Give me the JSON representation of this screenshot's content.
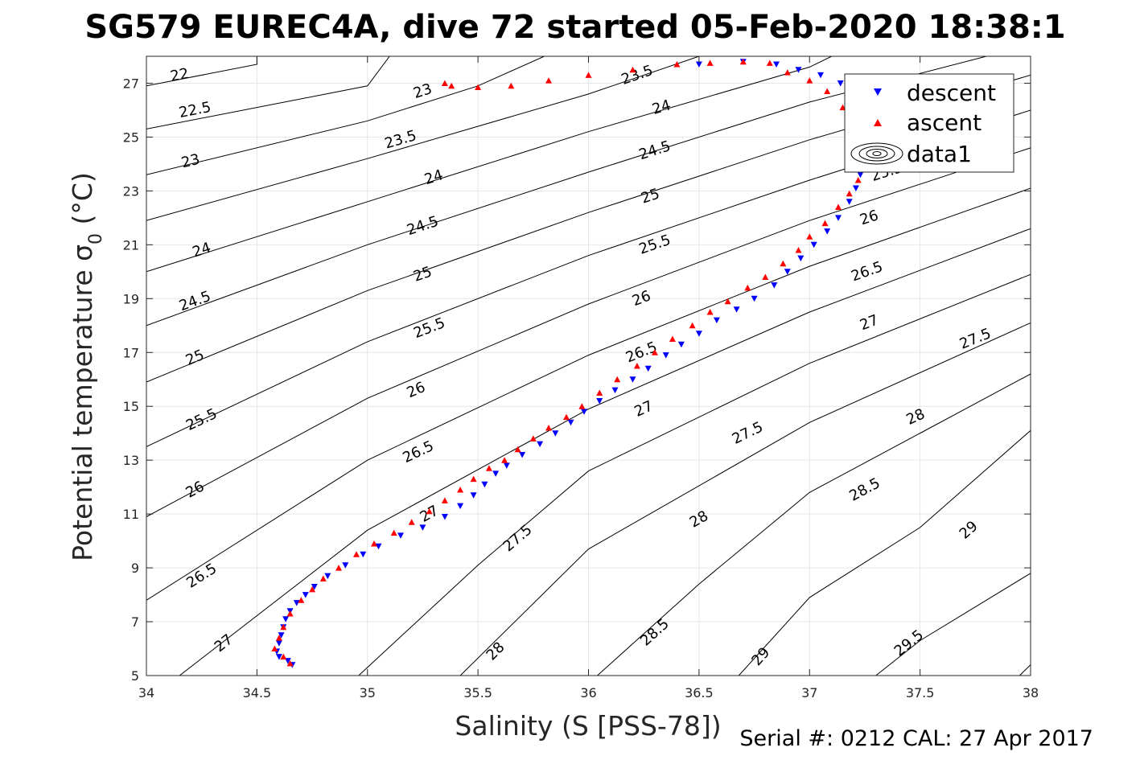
{
  "chart_data": {
    "type": "scatter",
    "title": "SG579 EUREC4A, dive 72 started 05-Feb-2020 18:38:1",
    "xlabel": "Salinity (S [PSS-78])",
    "ylabel": "Potential temperature σ",
    "ylabel_subscript": "0",
    "ylabel_unit": " (°C)",
    "xlim": [
      34,
      38
    ],
    "ylim": [
      5,
      28
    ],
    "xticks": [
      34,
      34.5,
      35,
      35.5,
      36,
      36.5,
      37,
      37.5,
      38
    ],
    "xtick_labels": [
      "34",
      "34.5",
      "35",
      "35.5",
      "36",
      "36.5",
      "37",
      "37.5",
      "38"
    ],
    "yticks": [
      5,
      7,
      9,
      11,
      13,
      15,
      17,
      19,
      21,
      23,
      25,
      27
    ],
    "ytick_labels": [
      "5",
      "7",
      "9",
      "11",
      "13",
      "15",
      "17",
      "19",
      "21",
      "23",
      "25",
      "27"
    ],
    "grid": true,
    "legend_position": "top-right",
    "density_contours": [
      {
        "sigma": 22,
        "label": "22",
        "points": [
          [
            34,
            26.9
          ],
          [
            34.5,
            27.7
          ],
          [
            34.5,
            28
          ]
        ]
      },
      {
        "sigma": 22.5,
        "label": "22.5",
        "points": [
          [
            34,
            25.3
          ],
          [
            35,
            26.9
          ],
          [
            35.1,
            28
          ]
        ]
      },
      {
        "sigma": 23,
        "label": "23",
        "points": [
          [
            34,
            23.6
          ],
          [
            35,
            25.6
          ],
          [
            35.5,
            26.9
          ],
          [
            35.8,
            28
          ]
        ]
      },
      {
        "sigma": 23.5,
        "label": "23.5",
        "points": [
          [
            34,
            21.9
          ],
          [
            35,
            24.2
          ],
          [
            36,
            26.6
          ],
          [
            36.5,
            28
          ]
        ]
      },
      {
        "sigma": 24,
        "label": "24",
        "points": [
          [
            34,
            20
          ],
          [
            35,
            22.6
          ],
          [
            36,
            25.2
          ],
          [
            37,
            27.6
          ],
          [
            37.1,
            28
          ]
        ]
      },
      {
        "sigma": 24.5,
        "label": "24.5",
        "points": [
          [
            34,
            18
          ],
          [
            35,
            21
          ],
          [
            36,
            23.7
          ],
          [
            37,
            26.3
          ],
          [
            37.8,
            28
          ]
        ]
      },
      {
        "sigma": 25,
        "label": "25",
        "points": [
          [
            34,
            15.9
          ],
          [
            35,
            19.3
          ],
          [
            36,
            22.2
          ],
          [
            37,
            24.9
          ],
          [
            38,
            27.3
          ]
        ]
      },
      {
        "sigma": 25.5,
        "label": "25.5",
        "points": [
          [
            34,
            13.5
          ],
          [
            35,
            17.4
          ],
          [
            36,
            20.6
          ],
          [
            37,
            23.4
          ],
          [
            38,
            26
          ]
        ]
      },
      {
        "sigma": 26,
        "label": "26",
        "points": [
          [
            34,
            10.9
          ],
          [
            35,
            15.3
          ],
          [
            36,
            18.8
          ],
          [
            37,
            21.9
          ],
          [
            38,
            24.6
          ]
        ]
      },
      {
        "sigma": 26.5,
        "label": "26.5",
        "points": [
          [
            34,
            7.8
          ],
          [
            35,
            13
          ],
          [
            36,
            16.9
          ],
          [
            37,
            20.2
          ],
          [
            38,
            23.1
          ]
        ]
      },
      {
        "sigma": 27,
        "label": "27",
        "points": [
          [
            34.15,
            5
          ],
          [
            35,
            10.4
          ],
          [
            36,
            14.9
          ],
          [
            37,
            18.5
          ],
          [
            38,
            21.6
          ]
        ]
      },
      {
        "sigma": 27.5,
        "label": "27.5",
        "points": [
          [
            34.96,
            5
          ],
          [
            35.5,
            9.1
          ],
          [
            36,
            12.6
          ],
          [
            37,
            16.6
          ],
          [
            38,
            19.9
          ]
        ]
      },
      {
        "sigma": 28,
        "label": "28",
        "points": [
          [
            35.42,
            5
          ],
          [
            36,
            9.7
          ],
          [
            37,
            14.4
          ],
          [
            38,
            18.1
          ]
        ]
      },
      {
        "sigma": 28.5,
        "label": "28.5",
        "points": [
          [
            36.04,
            5
          ],
          [
            36.5,
            8.4
          ],
          [
            37,
            11.8
          ],
          [
            38,
            16.2
          ]
        ]
      },
      {
        "sigma": 29,
        "label": "29",
        "points": [
          [
            36.68,
            5
          ],
          [
            37,
            7.9
          ],
          [
            37.5,
            10.5
          ],
          [
            38,
            14.1
          ]
        ]
      },
      {
        "sigma": 29.5,
        "label": "29.5",
        "points": [
          [
            37.3,
            5
          ],
          [
            37.5,
            6.3
          ],
          [
            38,
            8.8
          ]
        ]
      },
      {
        "sigma": 30,
        "label": "",
        "points": [
          [
            37.95,
            5
          ],
          [
            38,
            5.4
          ]
        ]
      }
    ],
    "contour_label_positions": [
      {
        "label": "22",
        "x": 34.15,
        "y": 27.3
      },
      {
        "label": "22.5",
        "x": 34.22,
        "y": 26.0
      },
      {
        "label": "23",
        "x": 34.2,
        "y": 24.1
      },
      {
        "label": "23",
        "x": 35.25,
        "y": 26.7
      },
      {
        "label": "23.5",
        "x": 35.15,
        "y": 24.9
      },
      {
        "label": "23.5",
        "x": 36.22,
        "y": 27.3
      },
      {
        "label": "24",
        "x": 34.25,
        "y": 20.8
      },
      {
        "label": "24",
        "x": 35.3,
        "y": 23.5
      },
      {
        "label": "24",
        "x": 36.33,
        "y": 26.1
      },
      {
        "label": "24.5",
        "x": 34.22,
        "y": 18.9
      },
      {
        "label": "24.5",
        "x": 35.25,
        "y": 21.7
      },
      {
        "label": "24.5",
        "x": 36.3,
        "y": 24.5
      },
      {
        "label": "25",
        "x": 34.22,
        "y": 16.8
      },
      {
        "label": "25",
        "x": 35.25,
        "y": 19.9
      },
      {
        "label": "25",
        "x": 36.28,
        "y": 22.8
      },
      {
        "label": "25.5",
        "x": 34.25,
        "y": 14.5
      },
      {
        "label": "25.5",
        "x": 35.28,
        "y": 17.9
      },
      {
        "label": "25.5",
        "x": 36.3,
        "y": 21.0
      },
      {
        "label": "26",
        "x": 34.22,
        "y": 11.9
      },
      {
        "label": "26",
        "x": 35.22,
        "y": 15.6
      },
      {
        "label": "26",
        "x": 36.24,
        "y": 19.0
      },
      {
        "label": "26",
        "x": 37.27,
        "y": 22.0
      },
      {
        "label": "26.5",
        "x": 34.25,
        "y": 8.7
      },
      {
        "label": "26.5",
        "x": 35.23,
        "y": 13.3
      },
      {
        "label": "26.5",
        "x": 36.24,
        "y": 17.0
      },
      {
        "label": "26.5",
        "x": 37.26,
        "y": 20.0
      },
      {
        "label": "27",
        "x": 34.35,
        "y": 6.2
      },
      {
        "label": "27",
        "x": 35.28,
        "y": 11.0
      },
      {
        "label": "27",
        "x": 36.25,
        "y": 14.9
      },
      {
        "label": "27",
        "x": 37.27,
        "y": 18.1
      },
      {
        "label": "27.5",
        "x": 35.68,
        "y": 10.1
      },
      {
        "label": "27.5",
        "x": 36.72,
        "y": 14.0
      },
      {
        "label": "27.5",
        "x": 37.75,
        "y": 17.5
      },
      {
        "label": "28",
        "x": 35.58,
        "y": 5.9
      },
      {
        "label": "28",
        "x": 36.5,
        "y": 10.8
      },
      {
        "label": "28",
        "x": 37.48,
        "y": 14.6
      },
      {
        "label": "28.5",
        "x": 36.3,
        "y": 6.6
      },
      {
        "label": "28.5",
        "x": 37.25,
        "y": 11.9
      },
      {
        "label": "29",
        "x": 36.78,
        "y": 5.7
      },
      {
        "label": "29",
        "x": 37.72,
        "y": 10.4
      },
      {
        "label": "29.5",
        "x": 37.45,
        "y": 6.2
      },
      {
        "label": "25.5",
        "x": 37.35,
        "y": 23.7
      }
    ],
    "series": [
      {
        "name": "descent",
        "marker": "down-triangle",
        "color": "#0000ff",
        "points": [
          [
            34.66,
            5.4
          ],
          [
            34.64,
            5.55
          ],
          [
            34.6,
            5.7
          ],
          [
            34.59,
            5.9
          ],
          [
            34.6,
            6.2
          ],
          [
            34.61,
            6.5
          ],
          [
            34.62,
            6.8
          ],
          [
            34.63,
            7.1
          ],
          [
            34.65,
            7.4
          ],
          [
            34.68,
            7.7
          ],
          [
            34.72,
            8.0
          ],
          [
            34.76,
            8.3
          ],
          [
            34.82,
            8.7
          ],
          [
            34.9,
            9.1
          ],
          [
            34.98,
            9.5
          ],
          [
            35.05,
            9.8
          ],
          [
            35.15,
            10.2
          ],
          [
            35.25,
            10.5
          ],
          [
            35.35,
            10.9
          ],
          [
            35.42,
            11.3
          ],
          [
            35.48,
            11.7
          ],
          [
            35.53,
            12.1
          ],
          [
            35.58,
            12.5
          ],
          [
            35.63,
            12.8
          ],
          [
            35.7,
            13.2
          ],
          [
            35.78,
            13.6
          ],
          [
            35.85,
            14.0
          ],
          [
            35.92,
            14.4
          ],
          [
            35.98,
            14.8
          ],
          [
            36.05,
            15.2
          ],
          [
            36.12,
            15.6
          ],
          [
            36.2,
            16.0
          ],
          [
            36.27,
            16.4
          ],
          [
            36.35,
            16.9
          ],
          [
            36.42,
            17.3
          ],
          [
            36.5,
            17.7
          ],
          [
            36.58,
            18.2
          ],
          [
            36.67,
            18.6
          ],
          [
            36.75,
            19.0
          ],
          [
            36.84,
            19.5
          ],
          [
            36.9,
            20.0
          ],
          [
            36.96,
            20.5
          ],
          [
            37.02,
            21.0
          ],
          [
            37.08,
            21.5
          ],
          [
            37.13,
            22.0
          ],
          [
            37.18,
            22.6
          ],
          [
            37.21,
            23.1
          ],
          [
            37.23,
            23.6
          ],
          [
            37.26,
            24.3
          ],
          [
            37.28,
            24.9
          ],
          [
            37.22,
            25.6
          ],
          [
            37.18,
            26.3
          ],
          [
            37.14,
            27.0
          ],
          [
            37.05,
            27.3
          ],
          [
            36.95,
            27.5
          ],
          [
            36.85,
            27.7
          ],
          [
            36.7,
            27.8
          ],
          [
            36.5,
            27.7
          ]
        ]
      },
      {
        "name": "ascent",
        "marker": "up-triangle",
        "color": "#ff0000",
        "points": [
          [
            34.65,
            5.45
          ],
          [
            34.62,
            5.7
          ],
          [
            34.58,
            6.0
          ],
          [
            34.6,
            6.4
          ],
          [
            34.62,
            6.8
          ],
          [
            34.65,
            7.3
          ],
          [
            34.7,
            7.8
          ],
          [
            34.75,
            8.2
          ],
          [
            34.8,
            8.6
          ],
          [
            34.87,
            9.0
          ],
          [
            34.95,
            9.5
          ],
          [
            35.03,
            9.9
          ],
          [
            35.12,
            10.3
          ],
          [
            35.2,
            10.7
          ],
          [
            35.28,
            11.1
          ],
          [
            35.35,
            11.5
          ],
          [
            35.42,
            11.9
          ],
          [
            35.48,
            12.3
          ],
          [
            35.55,
            12.7
          ],
          [
            35.62,
            13.0
          ],
          [
            35.68,
            13.4
          ],
          [
            35.75,
            13.8
          ],
          [
            35.82,
            14.2
          ],
          [
            35.9,
            14.6
          ],
          [
            35.97,
            15.0
          ],
          [
            36.05,
            15.5
          ],
          [
            36.13,
            16.0
          ],
          [
            36.22,
            16.5
          ],
          [
            36.3,
            17.0
          ],
          [
            36.38,
            17.5
          ],
          [
            36.47,
            18.0
          ],
          [
            36.55,
            18.5
          ],
          [
            36.63,
            18.9
          ],
          [
            36.72,
            19.4
          ],
          [
            36.8,
            19.8
          ],
          [
            36.88,
            20.3
          ],
          [
            36.95,
            20.8
          ],
          [
            37.0,
            21.3
          ],
          [
            37.07,
            21.8
          ],
          [
            37.13,
            22.4
          ],
          [
            37.18,
            22.9
          ],
          [
            37.22,
            23.4
          ],
          [
            37.24,
            24.0
          ],
          [
            37.25,
            24.7
          ],
          [
            37.22,
            25.4
          ],
          [
            37.15,
            26.1
          ],
          [
            37.08,
            26.7
          ],
          [
            37.0,
            27.1
          ],
          [
            36.9,
            27.4
          ],
          [
            36.82,
            27.75
          ],
          [
            36.7,
            27.8
          ],
          [
            36.55,
            27.75
          ],
          [
            36.4,
            27.7
          ],
          [
            36.2,
            27.5
          ],
          [
            36.0,
            27.3
          ],
          [
            35.82,
            27.1
          ],
          [
            35.65,
            26.9
          ],
          [
            35.5,
            26.85
          ],
          [
            35.38,
            26.9
          ],
          [
            35.35,
            27.0
          ]
        ]
      }
    ],
    "legend": {
      "entries": [
        "descent",
        "ascent",
        "data1"
      ]
    }
  },
  "footer": {
    "serial_text": "Serial #: 0212  CAL: 27 Apr 2017"
  },
  "colors": {
    "descent": "#0000ff",
    "ascent": "#ff0000",
    "contour": "#000000",
    "grid": "#e6e6e6",
    "axis": "#262626"
  }
}
